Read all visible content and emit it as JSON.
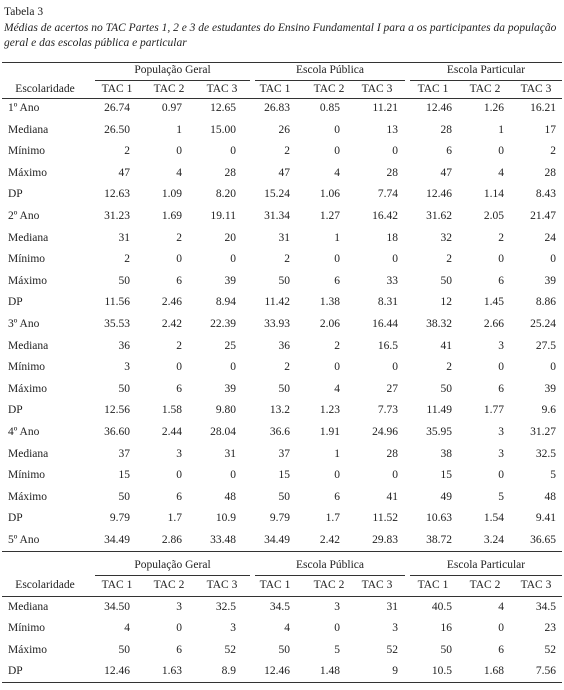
{
  "title": "Tabela 3",
  "caption": [
    "Médias de acertos no TAC Partes 1, 2 e 3 de estudantes do Ensino Fundamental I para a os participantes da população",
    "geral e das escolas pública e particular"
  ],
  "tables": [
    {
      "groups": [
        "População Geral",
        "Escola Pública",
        "Escola Particular"
      ],
      "header": [
        "Escolaridade",
        "TAC 1",
        "TAC 2",
        "TAC 3",
        "TAC 1",
        "TAC 2",
        "TAC 3",
        "TAC 1",
        "TAC 2",
        "TAC 3"
      ],
      "rows": [
        [
          "1º Ano",
          "26.74",
          "0.97",
          "12.65",
          "26.83",
          "0.85",
          "11.21",
          "12.46",
          "1.26",
          "16.21"
        ],
        [
          "Mediana",
          "26.50",
          "1",
          "15.00",
          "26",
          "0",
          "13",
          "28",
          "1",
          "17"
        ],
        [
          "Mínimo",
          "2",
          "0",
          "0",
          "2",
          "0",
          "0",
          "6",
          "0",
          "2"
        ],
        [
          "Máximo",
          "47",
          "4",
          "28",
          "47",
          "4",
          "28",
          "47",
          "4",
          "28"
        ],
        [
          "DP",
          "12.63",
          "1.09",
          "8.20",
          "15.24",
          "1.06",
          "7.74",
          "12.46",
          "1.14",
          "8.43"
        ],
        [
          "2º Ano",
          "31.23",
          "1.69",
          "19.11",
          "31.34",
          "1.27",
          "16.42",
          "31.62",
          "2.05",
          "21.47"
        ],
        [
          "Mediana",
          "31",
          "2",
          "20",
          "31",
          "1",
          "18",
          "32",
          "2",
          "24"
        ],
        [
          "Mínimo",
          "2",
          "0",
          "0",
          "2",
          "0",
          "0",
          "2",
          "0",
          "0"
        ],
        [
          "Máximo",
          "50",
          "6",
          "39",
          "50",
          "6",
          "33",
          "50",
          "6",
          "39"
        ],
        [
          "DP",
          "11.56",
          "2.46",
          "8.94",
          "11.42",
          "1.38",
          "8.31",
          "12",
          "1.45",
          "8.86"
        ],
        [
          "3º Ano",
          "35.53",
          "2.42",
          "22.39",
          "33.93",
          "2.06",
          "16.44",
          "38.32",
          "2.66",
          "25.24"
        ],
        [
          "Mediana",
          "36",
          "2",
          "25",
          "36",
          "2",
          "16.5",
          "41",
          "3",
          "27.5"
        ],
        [
          "Mínimo",
          "3",
          "0",
          "0",
          "2",
          "0",
          "0",
          "2",
          "0",
          "0"
        ],
        [
          "Máximo",
          "50",
          "6",
          "39",
          "50",
          "4",
          "27",
          "50",
          "6",
          "39"
        ],
        [
          "DP",
          "12.56",
          "1.58",
          "9.80",
          "13.2",
          "1.23",
          "7.73",
          "11.49",
          "1.77",
          "9.6"
        ],
        [
          "4º Ano",
          "36.60",
          "2.44",
          "28.04",
          "36.6",
          "1.91",
          "24.96",
          "35.95",
          "3",
          "31.27"
        ],
        [
          "Mediana",
          "37",
          "3",
          "31",
          "37",
          "1",
          "28",
          "38",
          "3",
          "32.5"
        ],
        [
          "Mínimo",
          "15",
          "0",
          "0",
          "15",
          "0",
          "0",
          "15",
          "0",
          "5"
        ],
        [
          "Máximo",
          "50",
          "6",
          "48",
          "50",
          "6",
          "41",
          "49",
          "5",
          "48"
        ],
        [
          "DP",
          "9.79",
          "1.7",
          "10.9",
          "9.79",
          "1.7",
          "11.52",
          "10.63",
          "1.54",
          "9.41"
        ],
        [
          "5º Ano",
          "34.49",
          "2.86",
          "33.48",
          "34.49",
          "2.42",
          "29.83",
          "38.72",
          "3.24",
          "36.65"
        ]
      ]
    },
    {
      "groups": [
        "População Geral",
        "Escola Pública",
        "Escola Particular"
      ],
      "header": [
        "Escolaridade",
        "TAC 1",
        "TAC 2",
        "TAC 3",
        "TAC 1",
        "TAC 2",
        "TAC 3",
        "TAC 1",
        "TAC 2",
        "TAC 3"
      ],
      "rows": [
        [
          "Mediana",
          "34.50",
          "3",
          "32.5",
          "34.5",
          "3",
          "31",
          "40.5",
          "4",
          "34.5"
        ],
        [
          "Mínimo",
          "4",
          "0",
          "3",
          "4",
          "0",
          "3",
          "16",
          "0",
          "23"
        ],
        [
          "Máximo",
          "50",
          "6",
          "52",
          "50",
          "5",
          "52",
          "50",
          "6",
          "52"
        ],
        [
          "DP",
          "12.46",
          "1.63",
          "8.9",
          "12.46",
          "1.48",
          "9",
          "10.5",
          "1.68",
          "7.56"
        ]
      ]
    }
  ]
}
